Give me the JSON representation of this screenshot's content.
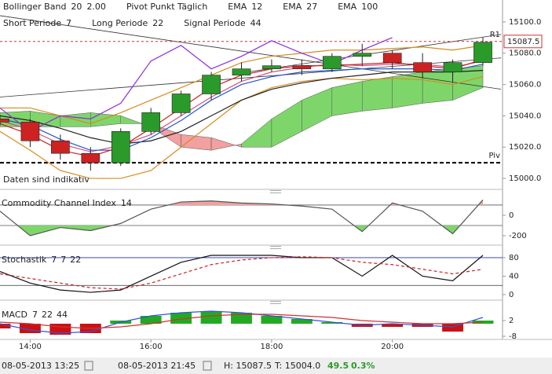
{
  "chart_data": [
    {
      "type": "candlestick",
      "legend": [
        [
          {
            "text": "Bollinger Band",
            "params": [
              {
                "text": "20",
                "color": "#d98a1e"
              },
              {
                "text": "2.00",
                "color": "#d98a1e"
              }
            ]
          },
          {
            "text": "Pivot Punkt Täglich",
            "params": []
          },
          {
            "text": "EMA",
            "params": [
              {
                "text": "12",
                "color": "#cc2222"
              }
            ]
          },
          {
            "text": "EMA",
            "params": [
              {
                "text": "27",
                "color": "#1f8a8a"
              }
            ]
          },
          {
            "text": "EMA",
            "params": [
              {
                "text": "100",
                "color": "#d98a1e"
              }
            ]
          }
        ],
        [
          {
            "text": "Short Periode",
            "params": [
              {
                "text": "7",
                "color": "#333"
              }
            ]
          },
          {
            "text": "Long Periode",
            "params": [
              {
                "text": "22",
                "color": "#333"
              }
            ]
          },
          {
            "text": "Signal Periode",
            "params": [
              {
                "text": "44",
                "color": "#333"
              }
            ]
          }
        ]
      ],
      "note": "Daten sind indikativ",
      "x": [
        13.5,
        14,
        14.5,
        15,
        15.5,
        16,
        16.5,
        17,
        17.5,
        18,
        18.5,
        19,
        19.5,
        20,
        20.5,
        21,
        21.5
      ],
      "xlim": [
        13.5,
        21.5
      ],
      "xticks": [
        {
          "value": 14,
          "label": "14:00"
        },
        {
          "value": 16,
          "label": "16:00"
        },
        {
          "value": 18,
          "label": "18:00"
        },
        {
          "value": 20,
          "label": "20:00"
        }
      ],
      "ylim": [
        14993.5,
        15114
      ],
      "yticks": [
        {
          "value": 15000,
          "label": "15000.0"
        },
        {
          "value": 15020,
          "label": "15020.0"
        },
        {
          "value": 15040,
          "label": "15040.0"
        },
        {
          "value": 15060,
          "label": "15060.0"
        },
        {
          "value": 15080,
          "label": "15080.0"
        },
        {
          "value": 15100,
          "label": "15100.0"
        }
      ],
      "open": [
        15038,
        15036,
        15024,
        15016,
        15010,
        15030,
        15042,
        15054,
        15066,
        15070,
        15072,
        15070,
        15078,
        15080,
        15074,
        15068,
        15074
      ],
      "high": [
        15040,
        15038,
        15028,
        15020,
        15032,
        15045,
        15056,
        15068,
        15074,
        15076,
        15076,
        15080,
        15086,
        15082,
        15080,
        15076,
        15090
      ],
      "low": [
        15034,
        15020,
        15012,
        15005,
        15008,
        15028,
        15040,
        15050,
        15062,
        15068,
        15066,
        15068,
        15072,
        15070,
        15064,
        15062,
        15072
      ],
      "close": [
        15036,
        15024,
        15016,
        15010,
        15030,
        15042,
        15054,
        15066,
        15070,
        15072,
        15070,
        15078,
        15080,
        15074,
        15068,
        15074,
        15087
      ],
      "up_color": "#2a9a2a",
      "down_color": "#cc2222",
      "cloud": {
        "a": [
          15042,
          15043,
          15040,
          15042,
          15040,
          15033,
          15020,
          15018,
          15022,
          15038,
          15050,
          15058,
          15062,
          15065,
          15068,
          15070,
          15072
        ],
        "b": [
          15033,
          15033,
          15033,
          15033,
          15035,
          15035,
          15028,
          15026,
          15020,
          15020,
          15030,
          15040,
          15043,
          15045,
          15048,
          15050,
          15058
        ],
        "up_color": "#7ed66b",
        "down_color": "#f2a0a0"
      },
      "series": [
        {
          "color": "#d98a1e",
          "values": [
            15045,
            15045,
            15040,
            15035,
            15042,
            15050,
            15058,
            15066,
            15074,
            15078,
            15080,
            15082,
            15082,
            15083,
            15084,
            15082,
            15085
          ]
        },
        {
          "color": "#d98a1e",
          "values": [
            15030,
            15018,
            15005,
            15000,
            15000,
            15005,
            15020,
            15035,
            15050,
            15058,
            15062,
            15064,
            15063,
            15064,
            15063,
            15060,
            15065
          ]
        },
        {
          "color": "#d0508a",
          "values": [
            15037,
            15031,
            15022,
            15017,
            15021,
            15028,
            15040,
            15052,
            15062,
            15068,
            15071,
            15073,
            15072,
            15073,
            15073,
            15071,
            15075
          ]
        },
        {
          "color": "#222222",
          "values": [
            15040,
            15037,
            15032,
            15026,
            15022,
            15024,
            15030,
            15040,
            15050,
            15057,
            15061,
            15064,
            15066,
            15068,
            15068,
            15068,
            15069
          ]
        },
        {
          "color": "#2255cc",
          "values": [
            15038,
            15034,
            15025,
            15018,
            15018,
            15026,
            15037,
            15050,
            15060,
            15065,
            15068,
            15069,
            15070,
            15070,
            15070,
            15069,
            15073
          ]
        },
        {
          "color": "#cc2222",
          "values": [
            15035,
            15028,
            15018,
            15014,
            15020,
            15032,
            15045,
            15058,
            15066,
            15070,
            15072,
            15072,
            15073,
            15074,
            15072,
            15070,
            15076
          ]
        },
        {
          "color": "#8a2be2",
          "values": [
            15045,
            15030,
            15040,
            15038,
            15048,
            15075,
            15085,
            15070,
            15078,
            15088,
            15080,
            15073,
            15082,
            15090,
            null,
            null,
            null
          ]
        }
      ],
      "trendlines": [
        {
          "x": [
            13.5,
            21.8
          ],
          "y": [
            15104,
            15057
          ]
        },
        {
          "x": [
            13.5,
            21.8
          ],
          "y": [
            15052,
            15077
          ]
        },
        {
          "x": [
            17.6,
            21.8
          ],
          "y": [
            15068,
            15092
          ]
        }
      ],
      "levels": [
        {
          "label": "R1",
          "value": 15087.5,
          "color": "#cc3333"
        },
        {
          "label": "Piv",
          "value": 15010,
          "color": "#000000"
        }
      ]
    },
    {
      "type": "cci",
      "title": "Commodity Channel Index",
      "params": [
        {
          "text": "14",
          "color": "#333"
        }
      ],
      "x": [
        13.5,
        14,
        14.5,
        15,
        15.5,
        16,
        16.5,
        17,
        17.5,
        18,
        18.5,
        19,
        19.5,
        20,
        20.5,
        21,
        21.5
      ],
      "xlim": [
        13.5,
        21.5
      ],
      "ylim": [
        -277,
        238
      ],
      "yticks": [
        0,
        -200
      ],
      "levels": [
        100,
        -100
      ],
      "series": [
        {
          "color": "#555555",
          "values": [
            40,
            -200,
            -120,
            -150,
            -80,
            60,
            130,
            140,
            120,
            110,
            90,
            60,
            -160,
            120,
            40,
            -180,
            150
          ]
        }
      ],
      "over_color": "#f2a0a0",
      "under_color": "#7ed66b"
    },
    {
      "type": "stochastic",
      "title": "Stochastik",
      "params": [
        {
          "text": "7",
          "color": "#333"
        },
        {
          "text": "7",
          "color": "#333"
        },
        {
          "text": "22",
          "color": "#cc2222"
        }
      ],
      "x": [
        13.5,
        14,
        14.5,
        15,
        15.5,
        16,
        16.5,
        17,
        17.5,
        18,
        18.5,
        19,
        19.5,
        20,
        20.5,
        21,
        21.5
      ],
      "xlim": [
        13.5,
        21.5
      ],
      "ylim": [
        -8.5,
        102
      ],
      "yticks": [
        80,
        40,
        0
      ],
      "levels": [
        80,
        20
      ],
      "series": [
        {
          "color": "#111111",
          "values": [
            50,
            25,
            10,
            5,
            10,
            40,
            70,
            85,
            85,
            85,
            80,
            80,
            40,
            85,
            40,
            30,
            85
          ]
        },
        {
          "color": "#cc2222",
          "dashed": true,
          "values": [
            45,
            35,
            25,
            15,
            12,
            25,
            45,
            65,
            75,
            80,
            82,
            80,
            70,
            65,
            55,
            45,
            55
          ]
        }
      ]
    },
    {
      "type": "macd",
      "title": "MACD",
      "params": [
        {
          "text": "7",
          "color": "#cc2222"
        },
        {
          "text": "22",
          "color": "#cc2222"
        },
        {
          "text": "44",
          "color": "#cc2222"
        }
      ],
      "x": [
        13.5,
        14,
        14.5,
        15,
        15.5,
        16,
        16.5,
        17,
        17.5,
        18,
        18.5,
        19,
        19.5,
        20,
        20.5,
        21,
        21.5
      ],
      "xlim": [
        13.5,
        21.5
      ],
      "ylim": [
        -10,
        13.5
      ],
      "yticks": [
        2,
        -8
      ],
      "histogram": [
        -3,
        -6,
        -7,
        -6,
        2,
        5,
        7,
        8,
        7,
        5,
        3,
        1,
        -2,
        -2,
        -2,
        -5,
        2
      ],
      "up_color": "#22aa22",
      "down_color": "#cc1111",
      "series": [
        {
          "color": "#3355dd",
          "values": [
            0,
            -4,
            -6,
            -5,
            1,
            5,
            7,
            8,
            7,
            5,
            3,
            1,
            -1,
            0,
            -1,
            -2,
            4
          ]
        },
        {
          "color": "#cc3333",
          "values": [
            1,
            0,
            -2,
            -3,
            -2,
            0,
            3,
            5,
            6,
            6,
            5,
            4,
            2,
            1,
            0,
            0,
            1
          ]
        }
      ]
    }
  ],
  "footer": {
    "start": "08-05-2013 13:25",
    "end": "08-05-2013 21:45",
    "high": "H: 15087.5",
    "low": "T: 15004.0",
    "change": "49.5",
    "change_pct": "0.3%"
  }
}
